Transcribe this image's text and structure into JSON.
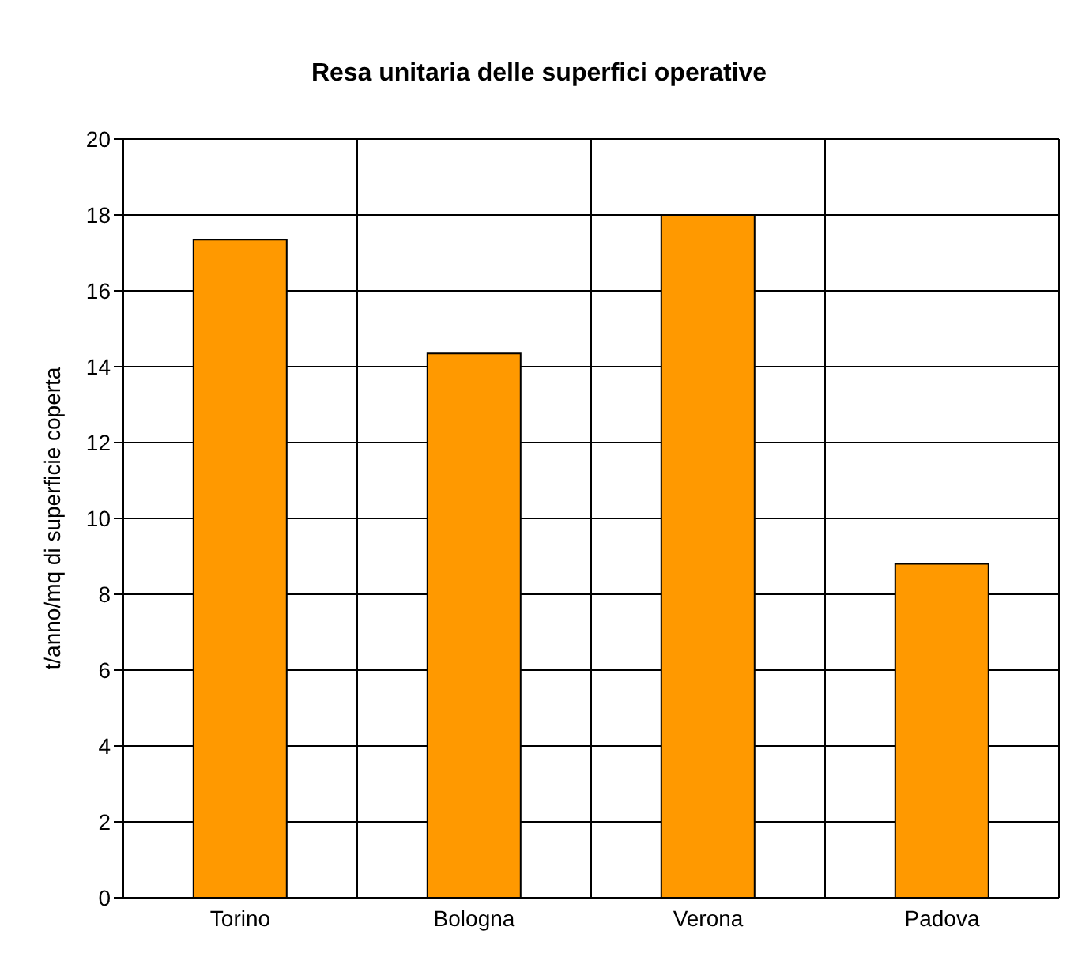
{
  "chart_data": {
    "type": "bar",
    "title": "Resa unitaria delle superfici operative",
    "ylabel": "t/anno/mq di superficie coperta",
    "categories": [
      "Torino",
      "Bologna",
      "Verona",
      "Padova"
    ],
    "values": [
      17.35,
      14.35,
      18,
      8.8
    ],
    "color": "#ff9900",
    "ylim": [
      0,
      20
    ],
    "yticks": [
      0,
      2,
      4,
      6,
      8,
      10,
      12,
      14,
      16,
      18,
      20
    ],
    "grid": true
  }
}
